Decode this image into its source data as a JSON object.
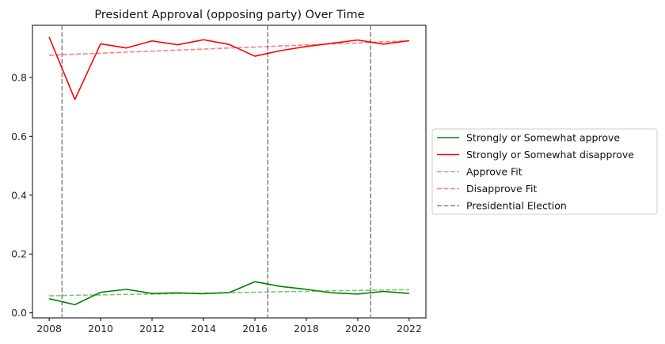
{
  "chart_data": {
    "type": "line",
    "title": "President Approval (opposing party) Over Time",
    "xlabel": "",
    "ylabel": "",
    "xlim": [
      2007.35,
      2022.65
    ],
    "ylim": [
      -0.017,
      0.977
    ],
    "x_ticks": [
      2008,
      2010,
      2012,
      2014,
      2016,
      2018,
      2020,
      2022
    ],
    "y_ticks": [
      0.0,
      0.2,
      0.4,
      0.6,
      0.8
    ],
    "y_tick_labels": [
      "0.0",
      "0.2",
      "0.4",
      "0.6",
      "0.8"
    ],
    "grid": false,
    "legend_position": "outside-right",
    "x": [
      2008,
      2009,
      2010,
      2011,
      2012,
      2013,
      2014,
      2015,
      2016,
      2017,
      2018,
      2019,
      2020,
      2021,
      2022
    ],
    "series": [
      {
        "name": "Strongly or Somewhat approve",
        "color": "#008000",
        "style": "solid",
        "values": [
          0.048,
          0.028,
          0.07,
          0.08,
          0.066,
          0.068,
          0.065,
          0.069,
          0.106,
          0.09,
          0.08,
          0.068,
          0.064,
          0.073,
          0.066
        ]
      },
      {
        "name": "Strongly or Somewhat disapprove",
        "color": "#ff0000",
        "style": "solid",
        "values": [
          0.937,
          0.725,
          0.914,
          0.9,
          0.924,
          0.911,
          0.928,
          0.912,
          0.872,
          0.891,
          0.905,
          0.916,
          0.927,
          0.913,
          0.925
        ]
      },
      {
        "name": "Approve Fit",
        "color": "#008000",
        "opacity": 0.5,
        "style": "dashed",
        "values": [
          0.058,
          0.06,
          0.061,
          0.063,
          0.064,
          0.066,
          0.067,
          0.069,
          0.07,
          0.072,
          0.073,
          0.075,
          0.076,
          0.078,
          0.079
        ]
      },
      {
        "name": "Disapprove Fit",
        "color": "#ff0000",
        "opacity": 0.5,
        "style": "dashed",
        "values": [
          0.875,
          0.879,
          0.882,
          0.886,
          0.889,
          0.893,
          0.896,
          0.9,
          0.903,
          0.907,
          0.91,
          0.914,
          0.917,
          0.921,
          0.924
        ]
      }
    ],
    "vlines": {
      "name": "Presidential Election",
      "color": "#808080",
      "style": "dashed",
      "x": [
        2008.5,
        2016.5,
        2020.5
      ]
    }
  }
}
